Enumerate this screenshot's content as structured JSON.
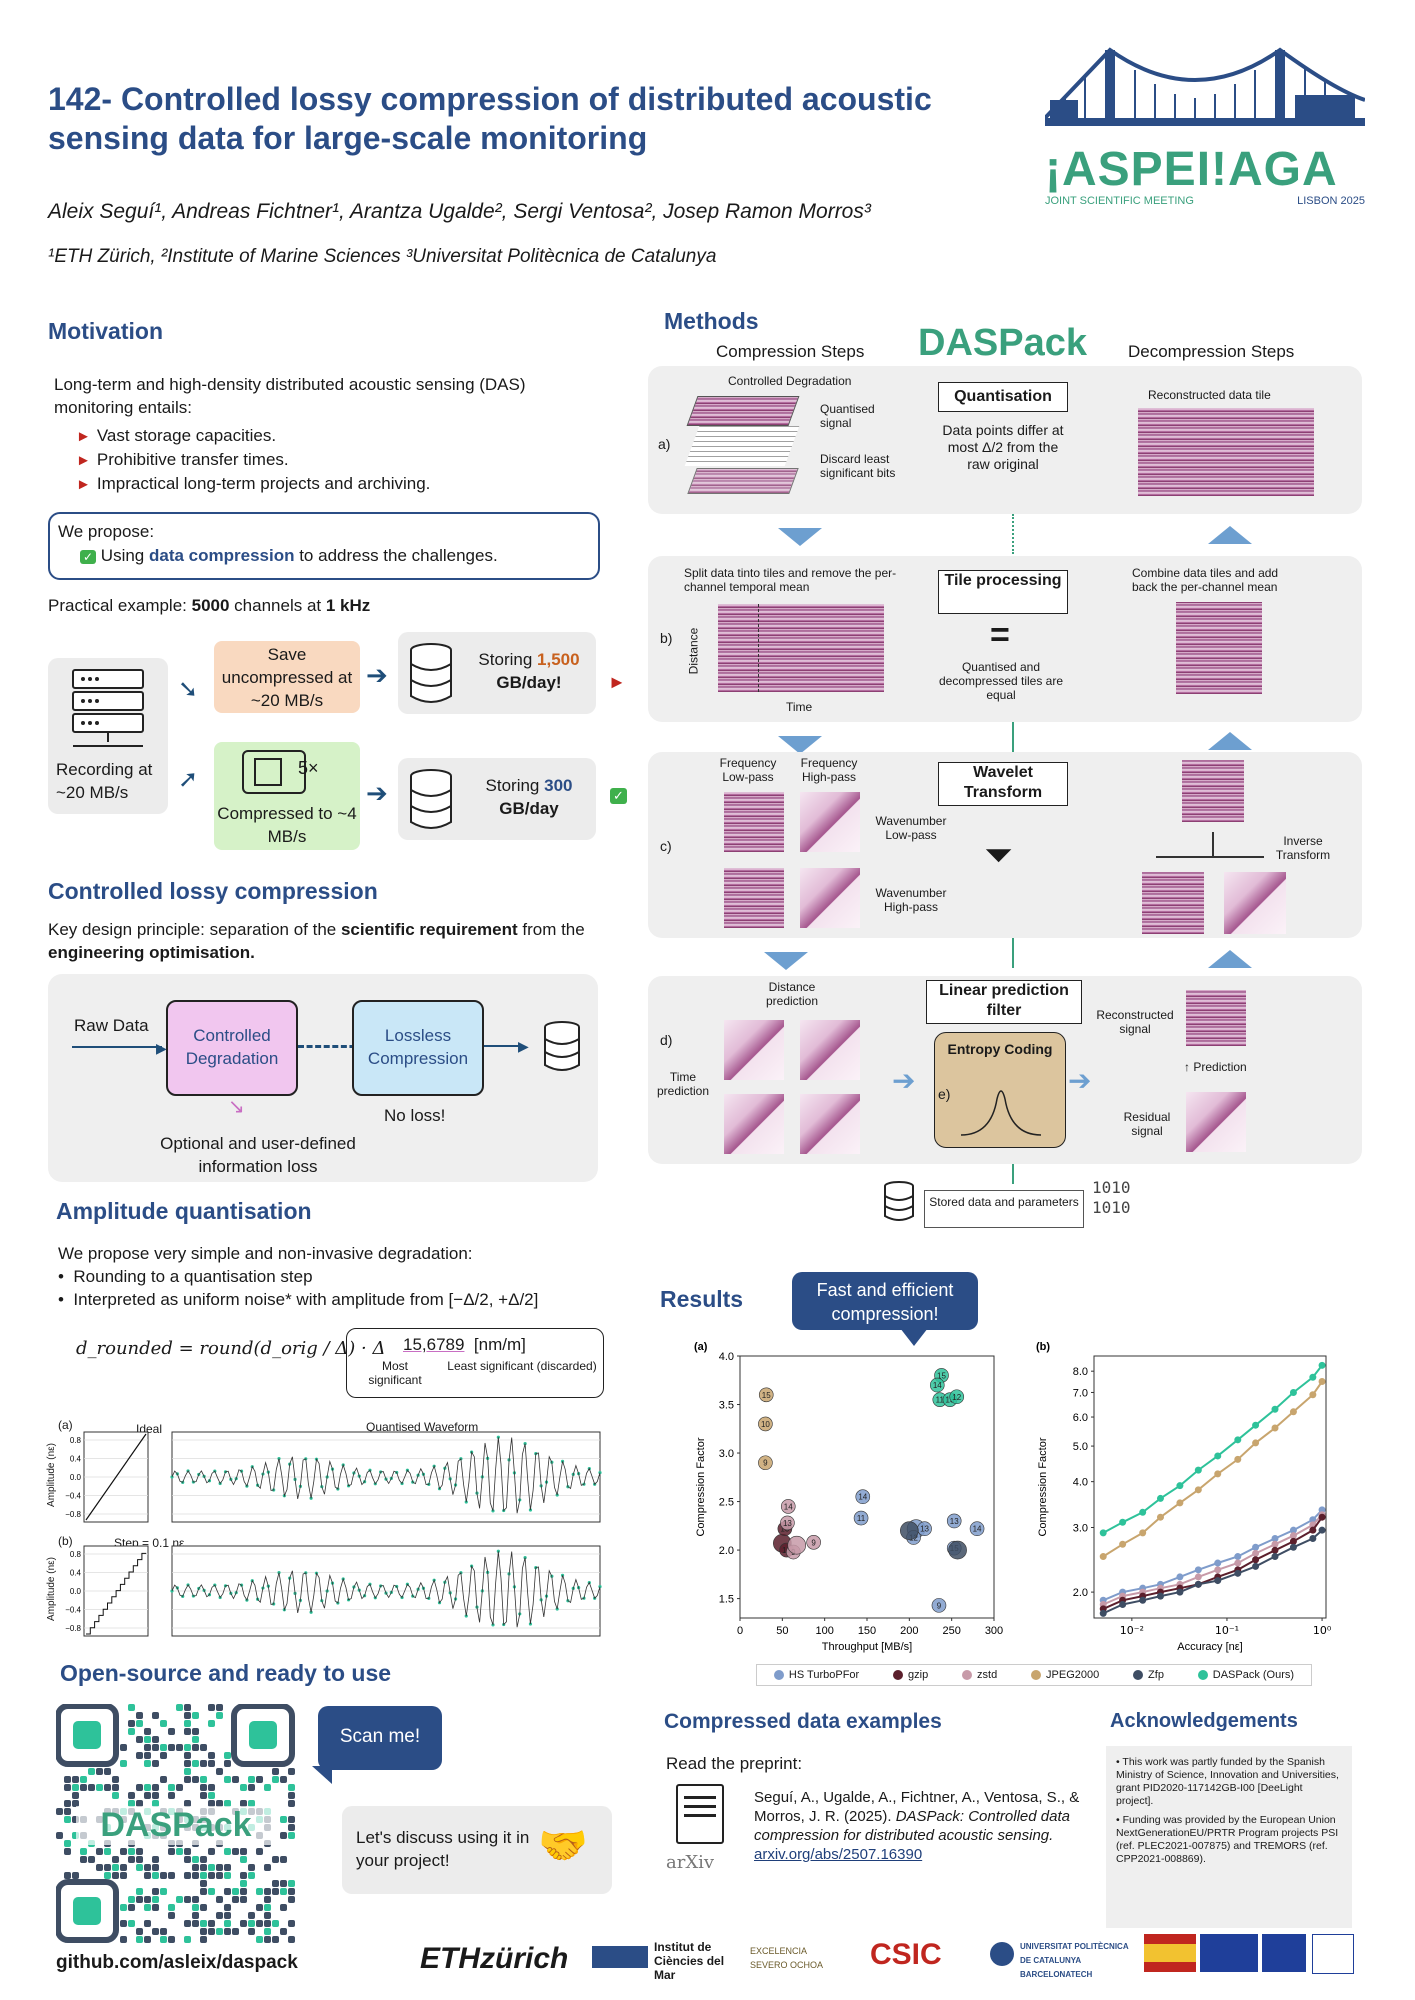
{
  "header": {
    "title": "142- Controlled lossy compression of distributed acoustic sensing data for large-scale monitoring",
    "authors": "Aleix Seguí¹, Andreas Fichtner¹, Arantza Ugalde², Sergi Ventosa², Josep Ramon Morros³",
    "affiliations": "¹ETH Zürich, ²Institute of Marine Sciences ³Universitat Politècnica de Catalunya",
    "logo_text": "¡ASPEI!AGA",
    "logo_sub_left": "JOINT SCIENTIFIC MEETING",
    "logo_sub_right": "LISBON 2025"
  },
  "motivation": {
    "heading": "Motivation",
    "intro": "Long-term and high-density distributed acoustic sensing (DAS) monitoring entails:",
    "bullets": [
      "Vast storage capacities.",
      "Prohibitive transfer times.",
      "Impractical long-term projects and archiving."
    ],
    "propose_label": "We propose:",
    "propose_pre": "Using ",
    "propose_bold": "data compression",
    "propose_post": " to address the challenges.",
    "practical_pre": "Practical example: ",
    "practical_bold": "5000",
    "practical_post": " channels at ",
    "practical_bold2": "1 kHz",
    "recording": "Recording at ~20 MB/s",
    "save": "Save uncompressed at ~20 MB/s",
    "store1_pre": "Storing ",
    "store1_val": "1,500",
    "store1_post": "GB/day!",
    "factor": "5×",
    "compressed": "Compressed to ~4 MB/s",
    "store2_pre": "Storing ",
    "store2_val": "300",
    "store2_post": "GB/day"
  },
  "controlled": {
    "heading": "Controlled lossy compression",
    "principle_pre": "Key design principle: separation of the ",
    "principle_b1": "scientific requirement",
    "principle_mid": " from the ",
    "principle_b2": "engineering optimisation.",
    "raw": "Raw Data",
    "degradation": "Controlled Degradation",
    "lossless": "Lossless Compression",
    "noloss": "No loss!",
    "optional": "Optional and user-defined information loss"
  },
  "amplitude": {
    "heading": "Amplitude quantisation",
    "intro": "We propose very simple and non-invasive degradation:",
    "b1": "Rounding to a quantisation step",
    "b2": "Interpreted as uniform noise* with amplitude from",
    "interval": "[−Δ/2, +Δ/2]",
    "formula": "d_rounded = round(d_orig / Δ) · Δ",
    "example_value": "15,6789",
    "example_unit": "[nm/m]",
    "most": "Most significant",
    "least": "Least significant (discarded)",
    "plot_a_label": "(a)",
    "plot_b_label": "(b)",
    "ideal": "Ideal",
    "step": "Step = 0.1 nε",
    "quant_title": "Quantised Waveform",
    "ylabel": "Amplitude (nε)",
    "yticks": [
      "0.8",
      "0.4",
      "0.0",
      "−0.4",
      "−0.8"
    ]
  },
  "opensource": {
    "heading": "Open-source and ready to use",
    "scan": "Scan me!",
    "discuss": "Let's discuss using it in your project!",
    "github": "github.com/asleix/daspack",
    "qr_logo": "DASPack"
  },
  "methods": {
    "heading": "Methods",
    "comp_steps": "Compression Steps",
    "decomp_steps": "Decompression Steps",
    "logo": "DASPack",
    "a_label": "a)",
    "a_title": "Controlled Degradation",
    "a_q": "Quantised signal",
    "a_d": "Discard least significant bits",
    "a_box": "Quantisation",
    "a_desc": "Data points differ at most Δ/2 from the raw original",
    "a_right": "Reconstructed data tile",
    "b_label": "b)",
    "b_title": "Split data tinto tiles and remove the per-channel temporal mean",
    "b_dist": "Distance",
    "b_time": "Time",
    "b_box": "Tile processing",
    "b_eq": "=",
    "b_desc": "Quantised and decompressed tiles are equal",
    "b_right": "Combine data tiles and add back the per-channel mean",
    "c_label": "c)",
    "c_fl": "Frequency Low-pass",
    "c_fh": "Frequency High-pass",
    "c_box": "Wavelet Transform",
    "c_wl": "Wavenumber Low-pass",
    "c_wh": "Wavenumber High-pass",
    "c_inv": "Inverse Transform",
    "d_label": "d)",
    "d_dist": "Distance prediction",
    "d_time": "Time prediction",
    "d_box": "Linear prediction filter",
    "e_label": "e)",
    "e_box": "Entropy Coding",
    "d_recon": "Reconstructed signal",
    "d_pred": "Prediction",
    "d_resid": "Residual signal",
    "stored": "Stored data and parameters",
    "bits": "1010 1010"
  },
  "results": {
    "heading": "Results",
    "callout": "Fast and efficient compression!",
    "legend": [
      "HS TurboPFor",
      "gzip",
      "zstd",
      "JPEG2000",
      "Zfp",
      "DASPack (Ours)"
    ],
    "colors": {
      "HS TurboPFor": "#7f9ccb",
      "gzip": "#5b1f2c",
      "zstd": "#c79aa8",
      "JPEG2000": "#c8a56e",
      "Zfp": "#3e4d63",
      "DASPack (Ours)": "#2ec29a"
    }
  },
  "chart_data": [
    {
      "type": "scatter",
      "title": "(a)",
      "xlabel": "Throughput [MB/s]",
      "ylabel": "Compression Factor",
      "xlim": [
        0,
        300
      ],
      "ylim": [
        1.3,
        4.0
      ],
      "xticks": [
        "0",
        "50",
        "100",
        "150",
        "200",
        "250",
        "300"
      ],
      "yticks": [
        "1.5",
        "2.0",
        "2.5",
        "3.0",
        "3.5",
        "4.0"
      ],
      "series": [
        {
          "name": "HS TurboPFor",
          "points": [
            [
              145,
              2.55,
              "14"
            ],
            [
              143,
              2.33,
              "11"
            ],
            [
              208,
              2.22,
              ""
            ],
            [
              218,
              2.22,
              "13"
            ],
            [
              205,
              2.13,
              "12"
            ],
            [
              253,
              2.3,
              "13"
            ],
            [
              280,
              2.22,
              "14"
            ],
            [
              253,
              2.02,
              "15"
            ],
            [
              235,
              1.43,
              "9"
            ]
          ]
        },
        {
          "name": "gzip",
          "points": [
            [
              50,
              2.07,
              ""
            ],
            [
              55,
              2.0,
              "12"
            ],
            [
              53,
              2.22,
              "13"
            ]
          ]
        },
        {
          "name": "zstd",
          "points": [
            [
              57,
              2.45,
              "14"
            ],
            [
              56,
              2.28,
              "13"
            ],
            [
              63,
              1.98,
              "9"
            ],
            [
              67,
              2.05,
              ""
            ],
            [
              87,
              2.08,
              "9"
            ]
          ]
        },
        {
          "name": "JPEG2000",
          "points": [
            [
              31,
              3.6,
              "15"
            ],
            [
              30,
              3.3,
              "10"
            ],
            [
              30,
              2.9,
              "9"
            ]
          ]
        },
        {
          "name": "Zfp",
          "points": [
            [
              200,
              2.2,
              ""
            ],
            [
              257,
              2.0,
              ""
            ]
          ]
        },
        {
          "name": "DaSPack (Ours)",
          "points": [
            [
              238,
              3.8,
              "15"
            ],
            [
              233,
              3.7,
              "14"
            ],
            [
              236,
              3.55,
              "11"
            ],
            [
              248,
              3.55,
              "13"
            ],
            [
              256,
              3.58,
              "12"
            ]
          ]
        }
      ]
    },
    {
      "type": "line",
      "title": "(b)",
      "xlabel": "Accuracy [nε]",
      "ylabel": "Compression Factor",
      "xscale": "log",
      "xticks": [
        "10⁻²",
        "10⁻¹",
        "10⁰"
      ],
      "yticks": [
        "2.0",
        "3.0",
        "4.0",
        "5.0",
        "6.0",
        "7.0",
        "8.0"
      ],
      "x": [
        0.005,
        0.008,
        0.013,
        0.02,
        0.032,
        0.05,
        0.08,
        0.13,
        0.2,
        0.32,
        0.5,
        0.8,
        1.0
      ],
      "series": [
        {
          "name": "DaSPack (Ours)",
          "values": [
            2.9,
            3.1,
            3.3,
            3.6,
            3.9,
            4.3,
            4.7,
            5.2,
            5.7,
            6.3,
            7.0,
            7.7,
            8.3
          ]
        },
        {
          "name": "JPEG2000",
          "values": [
            2.5,
            2.7,
            2.9,
            3.2,
            3.5,
            3.8,
            4.2,
            4.6,
            5.1,
            5.6,
            6.2,
            6.9,
            7.5
          ]
        },
        {
          "name": "HS TurboPFor",
          "values": [
            1.9,
            2.0,
            2.05,
            2.1,
            2.2,
            2.3,
            2.4,
            2.5,
            2.65,
            2.8,
            2.95,
            3.15,
            3.35
          ]
        },
        {
          "name": "zstd",
          "values": [
            1.85,
            1.95,
            2.0,
            2.05,
            2.1,
            2.2,
            2.3,
            2.4,
            2.55,
            2.7,
            2.85,
            3.05,
            3.25
          ]
        },
        {
          "name": "gzip",
          "values": [
            1.8,
            1.9,
            1.95,
            2.0,
            2.05,
            2.1,
            2.2,
            2.3,
            2.45,
            2.6,
            2.75,
            2.95,
            3.2
          ]
        },
        {
          "name": "Zfp",
          "values": [
            1.75,
            1.85,
            1.9,
            1.95,
            2.0,
            2.1,
            2.15,
            2.25,
            2.35,
            2.5,
            2.65,
            2.8,
            2.95
          ]
        }
      ]
    }
  ],
  "examples": {
    "heading": "Compressed data examples",
    "preprint": "Read the preprint:",
    "ref1": "Seguí, A., Ugalde, A., Fichtner, A., Ventosa, S., & Morros, J. R. (2025). ",
    "ref_italic": "DASPack: Controlled data compression for distributed acoustic sensing.",
    "ref_link": "arxiv.org/abs/2507.16390",
    "arxiv": "arXiv"
  },
  "ack": {
    "heading": "Acknowledgements",
    "b1": "This work was partly funded by the Spanish Ministry of Science, Innovation and Universities, grant PID2020-117142GB-I00 [DeeLight project].",
    "b2": "Funding was provided by the European Union NextGenerationEU/PRTR Program projects PSI (ref. PLEC2021-007875) and TREMORS (ref. CPP2021-008869)."
  },
  "footer": {
    "eth": "ETHzürich",
    "icm": "Institut de Ciències del Mar",
    "severo": "EXCELENCIA SEVERO OCHOA",
    "csic": "CSIC",
    "upc": "UNIVERSITAT POLITÈCNICA DE CATALUNYA BARCELONATECH"
  }
}
